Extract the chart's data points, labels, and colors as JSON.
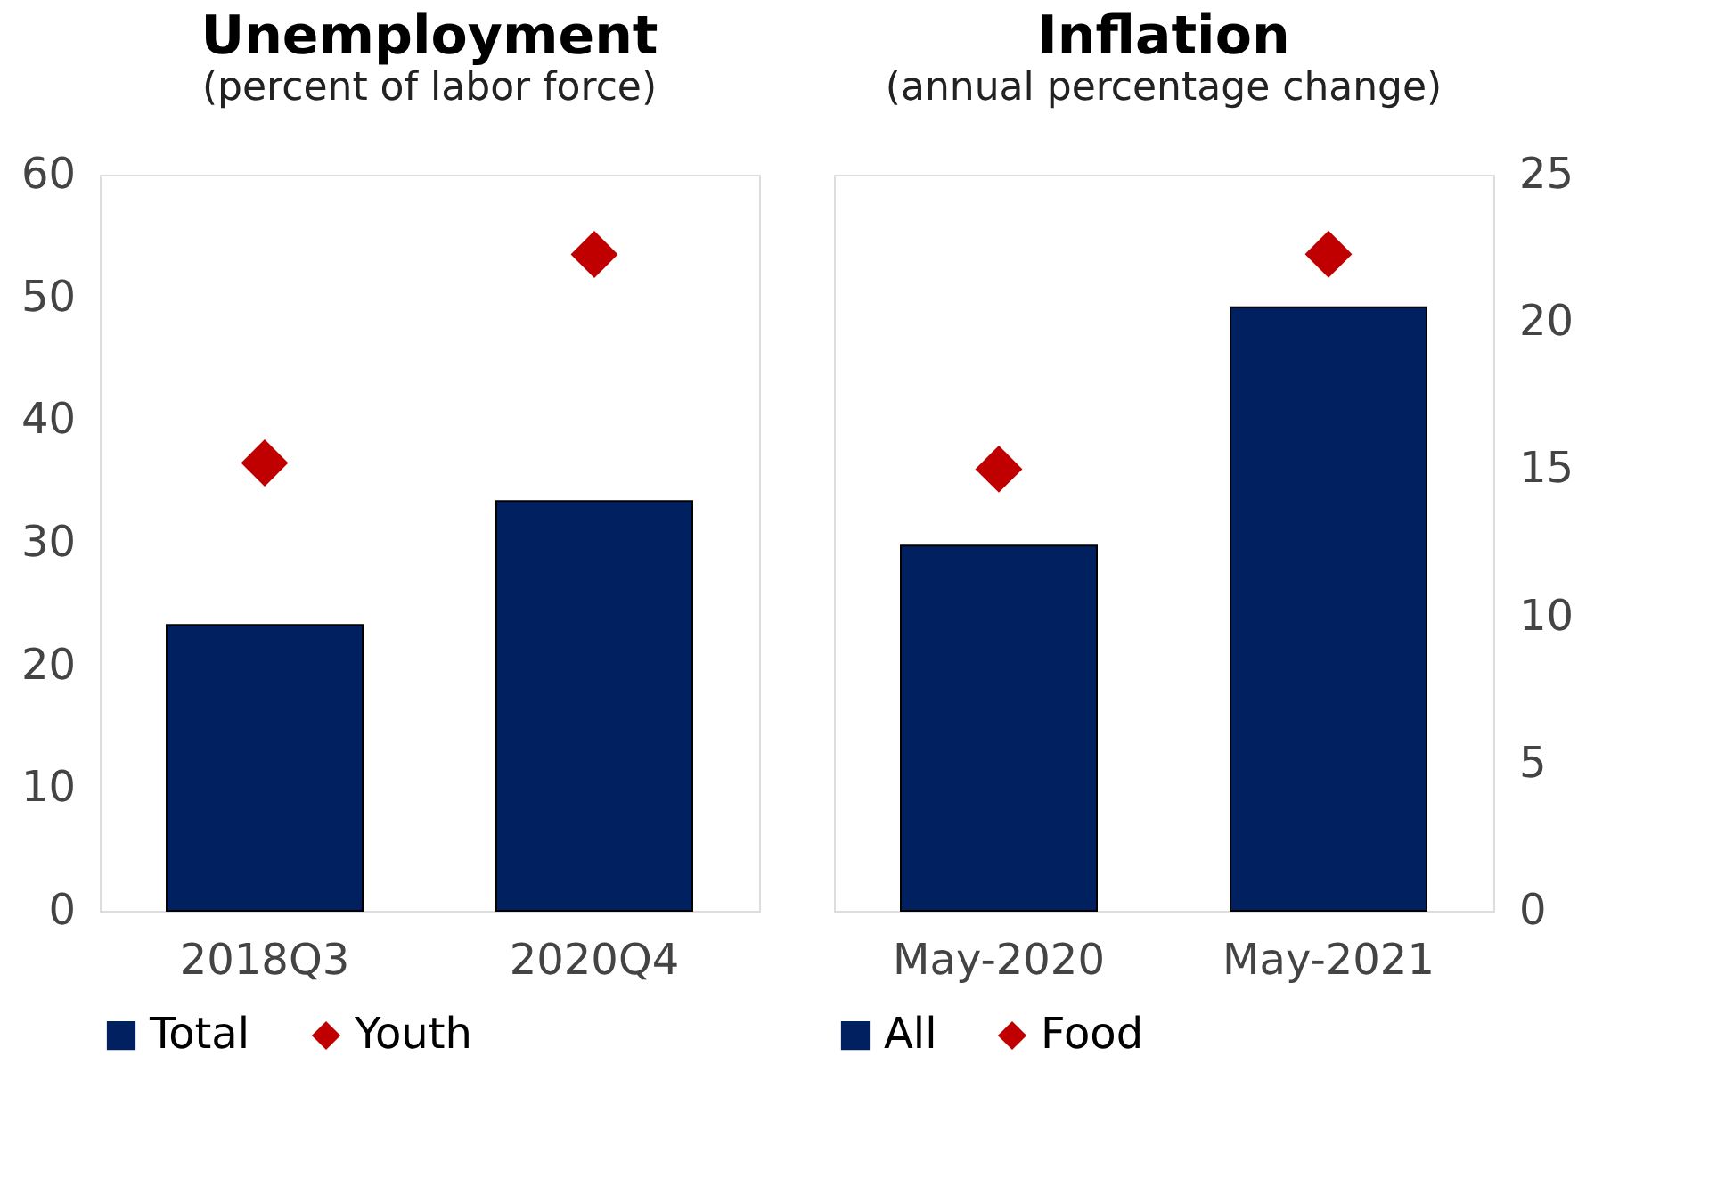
{
  "chart_data": [
    {
      "type": "bar",
      "title": "Unemployment",
      "subtitle": "(percent of labor force)",
      "categories": [
        "2018Q3",
        "2020Q4"
      ],
      "series": [
        {
          "name": "Total",
          "color": "#002060",
          "values": [
            23.3,
            33.4
          ]
        },
        {
          "name": "Youth",
          "type": "scatter",
          "marker": "diamond",
          "color": "#c00000",
          "values": [
            36.5,
            53.5
          ]
        }
      ],
      "ylim": [
        0,
        60
      ],
      "yticks": [
        0,
        10,
        20,
        30,
        40,
        50,
        60
      ],
      "grid": false,
      "legend": "bottom"
    },
    {
      "type": "bar",
      "title": "Inflation",
      "subtitle": "(annual percentage change)",
      "categories": [
        "May-2020",
        "May-2021"
      ],
      "series": [
        {
          "name": "All",
          "color": "#002060",
          "values": [
            12.4,
            20.5
          ],
          "axis": "y2"
        },
        {
          "name": "Food",
          "type": "scatter",
          "marker": "diamond",
          "color": "#c00000",
          "values": [
            15.0,
            22.3
          ],
          "axis": "y2"
        }
      ],
      "y2lim": [
        0,
        25
      ],
      "y2ticks": [
        0,
        5,
        10,
        15,
        20,
        25
      ],
      "grid": false,
      "legend": "bottom"
    }
  ]
}
